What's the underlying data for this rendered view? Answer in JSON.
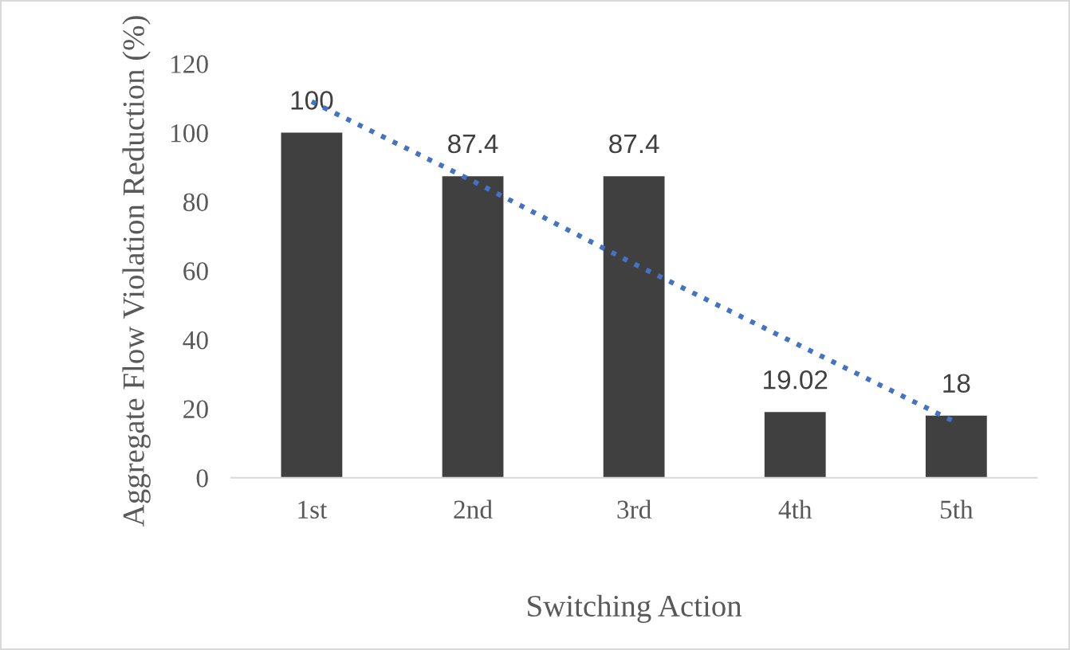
{
  "chart_data": {
    "type": "bar",
    "categories": [
      "1st",
      "2nd",
      "3rd",
      "4th",
      "5th"
    ],
    "series": [
      {
        "color": "#404040",
        "values": [
          100,
          87.4,
          87.4,
          19.02,
          18
        ],
        "data_labels": true
      },
      {
        "type": "line",
        "color": "#4472c4",
        "line_style": "dotted",
        "marker": "none",
        "values": [
          109,
          86,
          62,
          39,
          16
        ]
      }
    ],
    "xlabel": "Switching Action",
    "ylabel": "Aggregate Flow Violation Reduction (%)",
    "ylim": [
      0,
      120
    ],
    "yticks": [
      0,
      20,
      40,
      60,
      80,
      100,
      120
    ],
    "grid": false
  }
}
